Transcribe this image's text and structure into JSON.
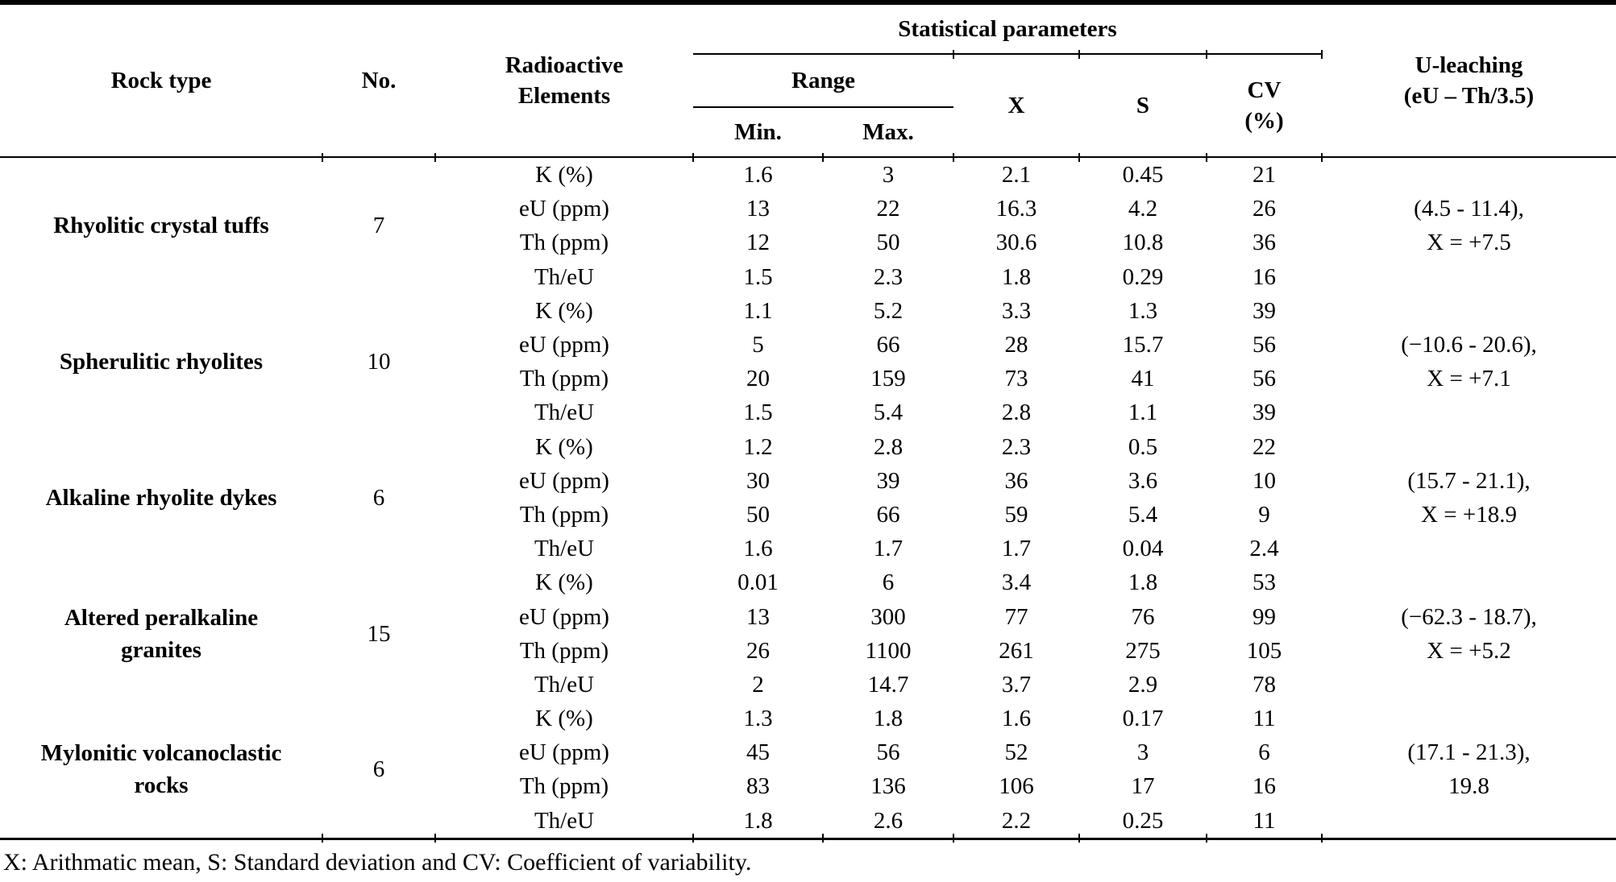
{
  "table": {
    "header": {
      "rock_type": "Rock type",
      "no": "No.",
      "radioactive_elements": "Radioactive\nElements",
      "statistical_parameters": "Statistical parameters",
      "range": "Range",
      "min": "Min.",
      "max": "Max.",
      "x": "X",
      "s": "S",
      "cv": "CV\n(%)",
      "u_leaching": "U-leaching\n(eU – Th/3.5)"
    },
    "groups": [
      {
        "rock_type": "Rhyolitic crystal tuffs",
        "no": "7",
        "u_leaching": "(4.5 - 11.4),\nX = +7.5",
        "rows": [
          {
            "element": "K (%)",
            "min": "1.6",
            "max": "3",
            "x": "2.1",
            "s": "0.45",
            "cv": "21"
          },
          {
            "element": "eU (ppm)",
            "min": "13",
            "max": "22",
            "x": "16.3",
            "s": "4.2",
            "cv": "26"
          },
          {
            "element": "Th (ppm)",
            "min": "12",
            "max": "50",
            "x": "30.6",
            "s": "10.8",
            "cv": "36"
          },
          {
            "element": "Th/eU",
            "min": "1.5",
            "max": "2.3",
            "x": "1.8",
            "s": "0.29",
            "cv": "16"
          }
        ]
      },
      {
        "rock_type": "Spherulitic rhyolites",
        "no": "10",
        "u_leaching": "(−10.6 - 20.6),\nX = +7.1",
        "rows": [
          {
            "element": "K (%)",
            "min": "1.1",
            "max": "5.2",
            "x": "3.3",
            "s": "1.3",
            "cv": "39"
          },
          {
            "element": "eU (ppm)",
            "min": "5",
            "max": "66",
            "x": "28",
            "s": "15.7",
            "cv": "56"
          },
          {
            "element": "Th (ppm)",
            "min": "20",
            "max": "159",
            "x": "73",
            "s": "41",
            "cv": "56"
          },
          {
            "element": "Th/eU",
            "min": "1.5",
            "max": "5.4",
            "x": "2.8",
            "s": "1.1",
            "cv": "39"
          }
        ]
      },
      {
        "rock_type": "Alkaline rhyolite dykes",
        "no": "6",
        "u_leaching": "(15.7 - 21.1),\nX = +18.9",
        "rows": [
          {
            "element": "K (%)",
            "min": "1.2",
            "max": "2.8",
            "x": "2.3",
            "s": "0.5",
            "cv": "22"
          },
          {
            "element": "eU (ppm)",
            "min": "30",
            "max": "39",
            "x": "36",
            "s": "3.6",
            "cv": "10"
          },
          {
            "element": "Th (ppm)",
            "min": "50",
            "max": "66",
            "x": "59",
            "s": "5.4",
            "cv": "9"
          },
          {
            "element": "Th/eU",
            "min": "1.6",
            "max": "1.7",
            "x": "1.7",
            "s": "0.04",
            "cv": "2.4"
          }
        ]
      },
      {
        "rock_type": "Altered peralkaline\ngranites",
        "no": "15",
        "u_leaching": "(−62.3 - 18.7),\nX = +5.2",
        "rows": [
          {
            "element": "K (%)",
            "min": "0.01",
            "max": "6",
            "x": "3.4",
            "s": "1.8",
            "cv": "53"
          },
          {
            "element": "eU (ppm)",
            "min": "13",
            "max": "300",
            "x": "77",
            "s": "76",
            "cv": "99"
          },
          {
            "element": "Th (ppm)",
            "min": "26",
            "max": "1100",
            "x": "261",
            "s": "275",
            "cv": "105"
          },
          {
            "element": "Th/eU",
            "min": "2",
            "max": "14.7",
            "x": "3.7",
            "s": "2.9",
            "cv": "78"
          }
        ]
      },
      {
        "rock_type": "Mylonitic volcanoclastic\nrocks",
        "no": "6",
        "u_leaching": "(17.1 - 21.3),\n19.8",
        "rows": [
          {
            "element": "K (%)",
            "min": "1.3",
            "max": "1.8",
            "x": "1.6",
            "s": "0.17",
            "cv": "11"
          },
          {
            "element": "eU (ppm)",
            "min": "45",
            "max": "56",
            "x": "52",
            "s": "3",
            "cv": "6"
          },
          {
            "element": "Th (ppm)",
            "min": "83",
            "max": "136",
            "x": "106",
            "s": "17",
            "cv": "16"
          },
          {
            "element": "Th/eU",
            "min": "1.8",
            "max": "2.6",
            "x": "2.2",
            "s": "0.25",
            "cv": "11"
          }
        ]
      }
    ],
    "footnote": "X: Arithmatic mean, S: Standard deviation and CV: Coefficient of variability."
  }
}
